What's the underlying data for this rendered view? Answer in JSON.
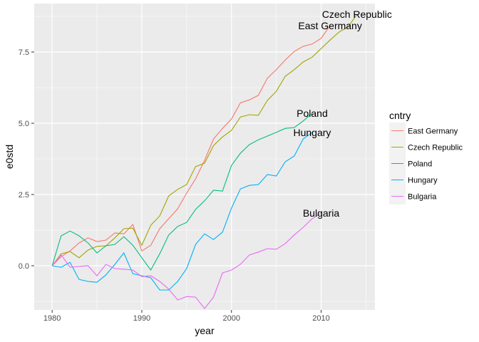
{
  "chart_data": {
    "type": "line",
    "xlabel": "year",
    "ylabel": "e0std",
    "xlim": [
      1978,
      2016
    ],
    "ylim": [
      -1.55,
      9.2
    ],
    "xticks": [
      1980,
      1990,
      2000,
      2010
    ],
    "yticks": [
      0,
      2.5,
      5,
      7.5
    ],
    "ytick_labels": [
      "0.0",
      "2.5",
      "5.0",
      "7.5"
    ],
    "grid": true,
    "legend": {
      "title": "cntry",
      "position": "right"
    },
    "series": [
      {
        "name": "East Germany",
        "color": "#F8766D",
        "label": "East Germany",
        "points": [
          [
            1980,
            0
          ],
          [
            1981,
            0.32
          ],
          [
            1982,
            0.52
          ],
          [
            1983,
            0.8
          ],
          [
            1984,
            0.98
          ],
          [
            1985,
            0.85
          ],
          [
            1986,
            0.9
          ],
          [
            1987,
            1.15
          ],
          [
            1988,
            1.12
          ],
          [
            1989,
            1.45
          ],
          [
            1990,
            0.52
          ],
          [
            1991,
            0.72
          ],
          [
            1992,
            1.3
          ],
          [
            1993,
            1.65
          ],
          [
            1994,
            2.0
          ],
          [
            1995,
            2.55
          ],
          [
            1996,
            3.05
          ],
          [
            1997,
            3.7
          ],
          [
            1998,
            4.45
          ],
          [
            1999,
            4.82
          ],
          [
            2000,
            5.15
          ],
          [
            2001,
            5.72
          ],
          [
            2002,
            5.82
          ],
          [
            2003,
            5.98
          ],
          [
            2004,
            6.58
          ],
          [
            2005,
            6.88
          ],
          [
            2006,
            7.22
          ],
          [
            2007,
            7.52
          ],
          [
            2008,
            7.7
          ],
          [
            2009,
            7.78
          ],
          [
            2010,
            7.98
          ],
          [
            2011,
            8.43
          ]
        ]
      },
      {
        "name": "Czech Republic",
        "color": "#A3A500",
        "label": "Czech Republic",
        "points": [
          [
            1980,
            0
          ],
          [
            1981,
            0.42
          ],
          [
            1982,
            0.5
          ],
          [
            1983,
            0.28
          ],
          [
            1984,
            0.55
          ],
          [
            1985,
            0.68
          ],
          [
            1986,
            0.7
          ],
          [
            1987,
            0.98
          ],
          [
            1988,
            1.3
          ],
          [
            1989,
            1.32
          ],
          [
            1990,
            0.72
          ],
          [
            1991,
            1.42
          ],
          [
            1992,
            1.75
          ],
          [
            1993,
            2.45
          ],
          [
            1994,
            2.68
          ],
          [
            1995,
            2.85
          ],
          [
            1996,
            3.48
          ],
          [
            1997,
            3.6
          ],
          [
            1998,
            4.22
          ],
          [
            1999,
            4.52
          ],
          [
            2000,
            4.75
          ],
          [
            2001,
            5.22
          ],
          [
            2002,
            5.3
          ],
          [
            2003,
            5.28
          ],
          [
            2004,
            5.8
          ],
          [
            2005,
            6.12
          ],
          [
            2006,
            6.65
          ],
          [
            2007,
            6.88
          ],
          [
            2008,
            7.15
          ],
          [
            2009,
            7.32
          ],
          [
            2010,
            7.62
          ],
          [
            2011,
            7.92
          ],
          [
            2012,
            8.2
          ],
          [
            2013,
            8.38
          ],
          [
            2014,
            8.82
          ]
        ]
      },
      {
        "name": "Poland",
        "color": "#00BF7D",
        "label": "Poland",
        "points": [
          [
            1980,
            0
          ],
          [
            1981,
            1.05
          ],
          [
            1982,
            1.22
          ],
          [
            1983,
            1.05
          ],
          [
            1984,
            0.8
          ],
          [
            1985,
            0.45
          ],
          [
            1986,
            0.7
          ],
          [
            1987,
            0.75
          ],
          [
            1988,
            1.02
          ],
          [
            1989,
            0.72
          ],
          [
            1990,
            0.28
          ],
          [
            1991,
            -0.15
          ],
          [
            1992,
            0.42
          ],
          [
            1993,
            1.08
          ],
          [
            1994,
            1.38
          ],
          [
            1995,
            1.52
          ],
          [
            1996,
            1.98
          ],
          [
            1997,
            2.28
          ],
          [
            1998,
            2.65
          ],
          [
            1999,
            2.62
          ],
          [
            2000,
            3.52
          ],
          [
            2001,
            3.95
          ],
          [
            2002,
            4.25
          ],
          [
            2003,
            4.42
          ],
          [
            2004,
            4.55
          ],
          [
            2005,
            4.68
          ],
          [
            2006,
            4.82
          ],
          [
            2007,
            4.85
          ],
          [
            2008,
            5.08
          ],
          [
            2009,
            5.35
          ]
        ]
      },
      {
        "name": "Hungary",
        "color": "#00B0F6",
        "label": "Hungary",
        "points": [
          [
            1980,
            0
          ],
          [
            1981,
            -0.05
          ],
          [
            1982,
            0.12
          ],
          [
            1983,
            -0.48
          ],
          [
            1984,
            -0.55
          ],
          [
            1985,
            -0.58
          ],
          [
            1986,
            -0.32
          ],
          [
            1987,
            0.05
          ],
          [
            1988,
            0.45
          ],
          [
            1989,
            -0.28
          ],
          [
            1990,
            -0.35
          ],
          [
            1991,
            -0.42
          ],
          [
            1992,
            -0.85
          ],
          [
            1993,
            -0.85
          ],
          [
            1994,
            -0.55
          ],
          [
            1995,
            -0.1
          ],
          [
            1996,
            0.75
          ],
          [
            1997,
            1.12
          ],
          [
            1998,
            0.92
          ],
          [
            1999,
            1.18
          ],
          [
            2000,
            2.02
          ],
          [
            2001,
            2.7
          ],
          [
            2002,
            2.82
          ],
          [
            2003,
            2.85
          ],
          [
            2004,
            3.2
          ],
          [
            2005,
            3.15
          ],
          [
            2006,
            3.65
          ],
          [
            2007,
            3.85
          ],
          [
            2008,
            4.45
          ],
          [
            2009,
            4.68
          ]
        ]
      },
      {
        "name": "Bulgaria",
        "color": "#E76BF3",
        "label": "Bulgaria",
        "points": [
          [
            1980,
            0
          ],
          [
            1981,
            0.38
          ],
          [
            1982,
            -0.05
          ],
          [
            1983,
            -0.02
          ],
          [
            1984,
            0.0
          ],
          [
            1985,
            -0.35
          ],
          [
            1986,
            0.05
          ],
          [
            1987,
            -0.1
          ],
          [
            1988,
            -0.12
          ],
          [
            1989,
            -0.15
          ],
          [
            1990,
            -0.38
          ],
          [
            1991,
            -0.35
          ],
          [
            1992,
            -0.55
          ],
          [
            1993,
            -0.82
          ],
          [
            1994,
            -1.2
          ],
          [
            1995,
            -1.08
          ],
          [
            1996,
            -1.1
          ],
          [
            1997,
            -1.5
          ],
          [
            1998,
            -1.1
          ],
          [
            1999,
            -0.25
          ],
          [
            2000,
            -0.15
          ],
          [
            2001,
            0.05
          ],
          [
            2002,
            0.38
          ],
          [
            2003,
            0.48
          ],
          [
            2004,
            0.6
          ],
          [
            2005,
            0.58
          ],
          [
            2006,
            0.78
          ],
          [
            2007,
            1.08
          ],
          [
            2008,
            1.35
          ],
          [
            2009,
            1.65
          ],
          [
            2010,
            1.85
          ]
        ]
      }
    ]
  }
}
